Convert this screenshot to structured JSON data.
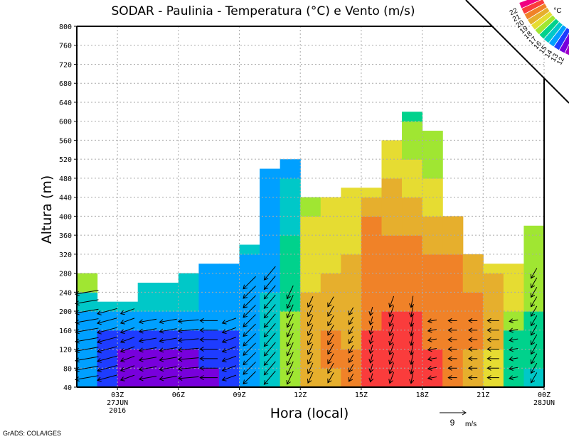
{
  "chart_data": {
    "type": "heatmap",
    "title": "SODAR - Paulinia - Temperatura (°C) e Vento (m/s)",
    "xlabel": "Hora (local)",
    "ylabel": "Altura (m)",
    "ylim": [
      40,
      800
    ],
    "yticks": [
      "40",
      "80",
      "120",
      "160",
      "200",
      "240",
      "280",
      "320",
      "360",
      "400",
      "440",
      "480",
      "520",
      "560",
      "600",
      "640",
      "680",
      "720",
      "760",
      "800"
    ],
    "xticks": [
      {
        "hour": 3,
        "label": "03Z",
        "sub1": "27JUN",
        "sub2": "2016"
      },
      {
        "hour": 6,
        "label": "06Z"
      },
      {
        "hour": 9,
        "label": "09Z"
      },
      {
        "hour": 12,
        "label": "12Z"
      },
      {
        "hour": 15,
        "label": "15Z"
      },
      {
        "hour": 18,
        "label": "18Z"
      },
      {
        "hour": 21,
        "label": "21Z"
      },
      {
        "hour": 24,
        "label": "00Z",
        "sub1": "28JUN"
      }
    ],
    "x_start_hour": 1,
    "x_end_hour": 24,
    "level_step_m": 40,
    "columns": [
      {
        "top": 280,
        "temp": [
          14.5,
          14.3,
          14.2,
          14.6,
          15.5,
          17.3
        ]
      },
      {
        "top": 220,
        "temp": [
          13.5,
          13.4,
          13.5,
          14.5,
          15.8
        ]
      },
      {
        "top": 220,
        "temp": [
          12.8,
          12.9,
          13.3,
          14.4,
          15.5
        ]
      },
      {
        "top": 260,
        "temp": [
          12.5,
          12.8,
          13.4,
          14.5,
          15.4,
          15.5
        ]
      },
      {
        "top": 260,
        "temp": [
          12.3,
          12.7,
          13.3,
          14.3,
          15.3,
          15.4
        ]
      },
      {
        "top": 280,
        "temp": [
          12.4,
          12.8,
          13.3,
          14.6,
          15.3,
          15.3
        ]
      },
      {
        "top": 300,
        "temp": [
          12.6,
          13.2,
          13.4,
          14.3,
          14.7,
          14.8,
          14.9
        ]
      },
      {
        "top": 300,
        "temp": [
          13.3,
          13.4,
          13.6,
          14.4,
          14.6,
          14.6,
          14.7
        ]
      },
      {
        "top": 340,
        "temp": [
          14.5,
          14.5,
          14.5,
          14.5,
          14.5,
          14.6,
          14.6,
          15.2
        ]
      },
      {
        "top": 500,
        "temp": [
          15.2,
          15.3,
          15.2,
          15.1,
          15.0,
          14.7,
          14.6,
          14.6,
          14.5,
          14.5,
          14.5,
          14.4
        ]
      },
      {
        "top": 520,
        "temp": [
          17.5,
          17.4,
          17.2,
          17.0,
          16.8,
          16.5,
          16.3,
          16.0,
          15.6,
          15.3,
          15.0,
          14.6
        ]
      },
      {
        "top": 440,
        "temp": [
          19.5,
          19.3,
          19.2,
          19.1,
          19.0,
          18.8,
          18.6,
          18.4,
          18.2,
          17.5
        ]
      },
      {
        "top": 440,
        "temp": [
          19.6,
          20.2,
          20.1,
          19.8,
          19.4,
          19.2,
          18.8,
          18.5,
          18.5,
          18.3
        ]
      },
      {
        "top": 460,
        "temp": [
          20.3,
          20.1,
          19.8,
          19.5,
          19.5,
          19.3,
          19.0,
          18.9,
          18.7,
          18.6,
          18.4
        ]
      },
      {
        "top": 460,
        "temp": [
          21.2,
          21.3,
          21.1,
          20.8,
          20.5,
          20.3,
          20.2,
          20.2,
          20.1,
          19.8,
          18.8
        ]
      },
      {
        "top": 560,
        "temp": [
          21.5,
          21.6,
          21.5,
          21.3,
          20.8,
          20.5,
          20.4,
          20.2,
          19.9,
          19.6,
          19.3,
          18.9,
          18.5
        ]
      },
      {
        "top": 620,
        "temp": [
          21.5,
          21.5,
          21.4,
          21.0,
          20.6,
          20.4,
          20.2,
          20.1,
          19.7,
          19.2,
          18.7,
          18.2,
          17.6,
          17.2,
          16.5
        ]
      },
      {
        "top": 580,
        "temp": [
          21.2,
          21.1,
          20.8,
          20.5,
          20.4,
          20.3,
          20.2,
          19.9,
          19.5,
          18.8,
          18.3,
          17.8,
          17.5,
          17.2
        ]
      },
      {
        "top": 400,
        "temp": [
          20.5,
          20.5,
          20.4,
          20.3,
          20.3,
          20.2,
          20.0,
          19.7,
          19.3
        ]
      },
      {
        "top": 320,
        "temp": [
          19.5,
          19.8,
          20.2,
          20.2,
          20.1,
          19.8,
          19.5
        ]
      },
      {
        "top": 300,
        "temp": [
          18.5,
          18.7,
          19.0,
          19.3,
          19.4,
          19.0,
          18.7
        ]
      },
      {
        "top": 300,
        "temp": [
          16.5,
          16.5,
          16.6,
          17.5,
          18.2,
          18.5,
          18.4
        ]
      },
      {
        "top": 380,
        "temp": [
          15.5,
          16.2,
          16.4,
          16.6,
          17.2,
          17.5,
          17.6,
          17.7,
          17.7
        ]
      }
    ],
    "wind": [
      {
        "from_deg": 80,
        "speed": 8,
        "top": 240
      },
      {
        "from_deg": 75,
        "speed": 7,
        "top": 200
      },
      {
        "from_deg": 70,
        "speed": 5,
        "top": 200
      },
      {
        "from_deg": 80,
        "speed": 6,
        "top": 180
      },
      {
        "from_deg": 80,
        "speed": 6,
        "top": 180
      },
      {
        "from_deg": 85,
        "speed": 7,
        "top": 180
      },
      {
        "from_deg": 90,
        "speed": 6,
        "top": 180
      },
      {
        "from_deg": 70,
        "speed": 5,
        "top": 180
      },
      {
        "from_deg": 45,
        "speed": 6,
        "top": 260
      },
      {
        "from_deg": 40,
        "speed": 6,
        "top": 280
      },
      {
        "from_deg": 25,
        "speed": 5,
        "top": 240
      },
      {
        "from_deg": 25,
        "speed": 4,
        "top": 220
      },
      {
        "from_deg": 30,
        "speed": 4,
        "top": 220
      },
      {
        "from_deg": 30,
        "speed": 3,
        "top": 200
      },
      {
        "from_deg": 15,
        "speed": 3,
        "top": 200
      },
      {
        "from_deg": 20,
        "speed": 4,
        "top": 220
      },
      {
        "from_deg": 10,
        "speed": 4,
        "top": 220
      },
      {
        "from_deg": 80,
        "speed": 3,
        "top": 180
      },
      {
        "from_deg": 90,
        "speed": 3,
        "top": 180
      },
      {
        "from_deg": 90,
        "speed": 3,
        "top": 180
      },
      {
        "from_deg": 90,
        "speed": 4,
        "top": 180
      },
      {
        "from_deg": 80,
        "speed": 3,
        "top": 180
      },
      {
        "from_deg": 30,
        "speed": 4,
        "top": 280
      }
    ],
    "colorbar": {
      "unit": "°C",
      "levels": [
        "22",
        "21",
        "20",
        "19",
        "18",
        "17",
        "16",
        "15",
        "14",
        "13",
        "12"
      ],
      "colors": [
        "#f00082",
        "#fa3c3c",
        "#f08228",
        "#e6af2d",
        "#e6dc32",
        "#a0e632",
        "#00d28c",
        "#00c8c8",
        "#00a0ff",
        "#1e3cff",
        "#7800dc",
        "#a000c8"
      ]
    },
    "reference_vector": {
      "value": "9",
      "unit": "m/s",
      "speed": 9
    }
  },
  "footer": "GrADS: COLA/IGES"
}
